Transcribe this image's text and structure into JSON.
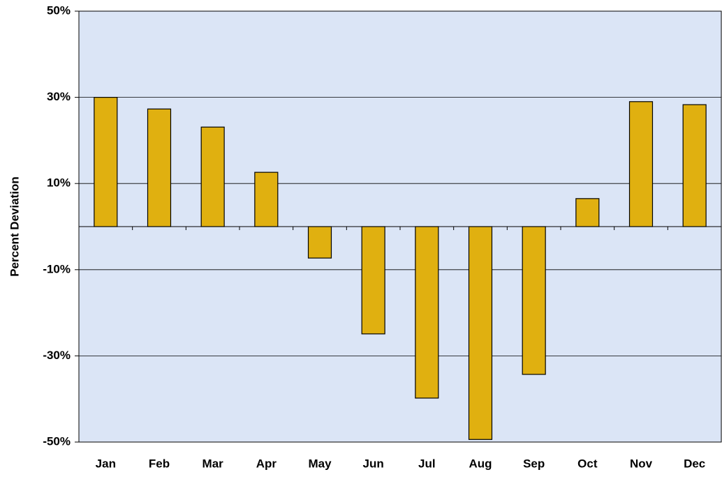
{
  "chart_data": {
    "type": "bar",
    "y_label": "Percent Deviation",
    "categories": [
      "Jan",
      "Feb",
      "Mar",
      "Apr",
      "May",
      "Jun",
      "Jul",
      "Aug",
      "Sep",
      "Oct",
      "Nov",
      "Dec"
    ],
    "values": [
      30,
      27.3,
      23.1,
      12.6,
      -7.3,
      -24.9,
      -39.8,
      -49.4,
      -34.3,
      6.5,
      29,
      28.3
    ],
    "color": "#e0b010",
    "ylim": [
      -50,
      50
    ],
    "yticks": [
      {
        "value": -50,
        "label": "-50%"
      },
      {
        "value": -30,
        "label": "-30%"
      },
      {
        "value": -10,
        "label": "-10%"
      },
      {
        "value": 10,
        "label": "10%"
      },
      {
        "value": 30,
        "label": "30%"
      },
      {
        "value": 50,
        "label": "50%"
      }
    ],
    "grid": true
  }
}
